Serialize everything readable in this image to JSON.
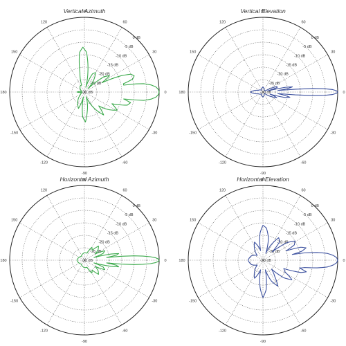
{
  "chart_data": [
    {
      "type": "polar",
      "title": "Vertical Azimuth",
      "color": "#3aa94a",
      "radial_ticks": [
        "0 dB",
        "-5 dB",
        "-10 dB",
        "-15 dB",
        "-20 dB",
        "-25 dB",
        "-30 dB"
      ],
      "radial_range_db": [
        -30,
        0
      ],
      "angular_ticks": [
        "90",
        "60",
        "30",
        "0",
        "-30",
        "-60",
        "-90",
        "-120",
        "-150",
        "180",
        "150",
        "120"
      ],
      "grid": true,
      "pattern": [
        {
          "angle": 0,
          "db": 0
        },
        {
          "angle": 2,
          "db": -0.3
        },
        {
          "angle": 4,
          "db": -1.2
        },
        {
          "angle": 6,
          "db": -3
        },
        {
          "angle": 8,
          "db": -6
        },
        {
          "angle": 9,
          "db": -9
        },
        {
          "angle": 10,
          "db": -14
        },
        {
          "angle": 12,
          "db": -14
        },
        {
          "angle": 15,
          "db": -10
        },
        {
          "angle": 18,
          "db": -9
        },
        {
          "angle": 21,
          "db": -10
        },
        {
          "angle": 24,
          "db": -14
        },
        {
          "angle": 28,
          "db": -22
        },
        {
          "angle": 33,
          "db": -18
        },
        {
          "angle": 38,
          "db": -20
        },
        {
          "angle": 44,
          "db": -28
        },
        {
          "angle": 52,
          "db": -24
        },
        {
          "angle": 60,
          "db": -21
        },
        {
          "angle": 66,
          "db": -22
        },
        {
          "angle": 74,
          "db": -28
        },
        {
          "angle": 80,
          "db": -22
        },
        {
          "angle": 87,
          "db": -14
        },
        {
          "angle": 92,
          "db": -12
        },
        {
          "angle": 97,
          "db": -14
        },
        {
          "angle": 103,
          "db": -22
        },
        {
          "angle": 112,
          "db": -27
        },
        {
          "angle": 125,
          "db": -27
        },
        {
          "angle": 145,
          "db": -28
        },
        {
          "angle": 168,
          "db": -29
        },
        {
          "angle": 180,
          "db": -27
        },
        {
          "angle": 190,
          "db": -29
        },
        {
          "angle": 215,
          "db": -28
        },
        {
          "angle": 238,
          "db": -25
        },
        {
          "angle": 250,
          "db": -23
        },
        {
          "angle": 258,
          "db": -28
        },
        {
          "angle": 266,
          "db": -20
        },
        {
          "angle": 272,
          "db": -18
        },
        {
          "angle": 278,
          "db": -22
        },
        {
          "angle": 290,
          "db": -28
        },
        {
          "angle": 302,
          "db": -22
        },
        {
          "angle": 310,
          "db": -18
        },
        {
          "angle": 316,
          "db": -22
        },
        {
          "angle": 324,
          "db": -18
        },
        {
          "angle": 331,
          "db": -15
        },
        {
          "angle": 337,
          "db": -18
        },
        {
          "angle": 343,
          "db": -12
        },
        {
          "angle": 347,
          "db": -11
        },
        {
          "angle": 350,
          "db": -14
        },
        {
          "angle": 352,
          "db": -6
        },
        {
          "angle": 354,
          "db": -3
        },
        {
          "angle": 356,
          "db": -1.2
        },
        {
          "angle": 358,
          "db": -0.3
        }
      ]
    },
    {
      "type": "polar",
      "title": "Vertical Elevation",
      "color": "#3a4f9e",
      "radial_ticks": [
        "0 dB",
        "-5 dB",
        "-10 dB",
        "-15 dB",
        "-20 dB",
        "-25 dB",
        "-30 dB"
      ],
      "radial_range_db": [
        -30,
        0
      ],
      "angular_ticks": [
        "90",
        "60",
        "30",
        "0",
        "-30",
        "-60",
        "-90",
        "-120",
        "-150",
        "180",
        "150",
        "120"
      ],
      "grid": true,
      "pattern": [
        {
          "angle": 0,
          "db": 0
        },
        {
          "angle": 1,
          "db": -0.5
        },
        {
          "angle": 2,
          "db": -2
        },
        {
          "angle": 3,
          "db": -5
        },
        {
          "angle": 4,
          "db": -10
        },
        {
          "angle": 5,
          "db": -17
        },
        {
          "angle": 6,
          "db": -24
        },
        {
          "angle": 8,
          "db": -20
        },
        {
          "angle": 10,
          "db": -18
        },
        {
          "angle": 12,
          "db": -21
        },
        {
          "angle": 14,
          "db": -28
        },
        {
          "angle": 18,
          "db": -24
        },
        {
          "angle": 22,
          "db": -24
        },
        {
          "angle": 28,
          "db": -29
        },
        {
          "angle": 40,
          "db": -29
        },
        {
          "angle": 60,
          "db": -29
        },
        {
          "angle": 90,
          "db": -28
        },
        {
          "angle": 130,
          "db": -29
        },
        {
          "angle": 160,
          "db": -28
        },
        {
          "angle": 180,
          "db": -25
        },
        {
          "angle": 200,
          "db": -28
        },
        {
          "angle": 230,
          "db": -29
        },
        {
          "angle": 270,
          "db": -28
        },
        {
          "angle": 300,
          "db": -29
        },
        {
          "angle": 320,
          "db": -29
        },
        {
          "angle": 332,
          "db": -26
        },
        {
          "angle": 338,
          "db": -24
        },
        {
          "angle": 343,
          "db": -27
        },
        {
          "angle": 346,
          "db": -21
        },
        {
          "angle": 349,
          "db": -19
        },
        {
          "angle": 352,
          "db": -22
        },
        {
          "angle": 354,
          "db": -24
        },
        {
          "angle": 355,
          "db": -17
        },
        {
          "angle": 356,
          "db": -10
        },
        {
          "angle": 357,
          "db": -5
        },
        {
          "angle": 358,
          "db": -2
        },
        {
          "angle": 359,
          "db": -0.5
        }
      ]
    },
    {
      "type": "polar",
      "title": "Horizontal Azimuth",
      "color": "#3aa94a",
      "radial_ticks": [
        "0 dB",
        "-5 dB",
        "-10 dB",
        "-15 dB",
        "-20 dB",
        "-25 dB",
        "-30 dB"
      ],
      "radial_range_db": [
        -30,
        0
      ],
      "angular_ticks": [
        "90",
        "60",
        "30",
        "0",
        "-30",
        "-60",
        "-90",
        "-120",
        "-150",
        "180",
        "150",
        "120"
      ],
      "grid": true,
      "pattern": [
        {
          "angle": 0,
          "db": 0
        },
        {
          "angle": 1,
          "db": -0.4
        },
        {
          "angle": 2,
          "db": -1.5
        },
        {
          "angle": 3,
          "db": -3.5
        },
        {
          "angle": 4,
          "db": -6.5
        },
        {
          "angle": 5,
          "db": -10
        },
        {
          "angle": 6,
          "db": -15
        },
        {
          "angle": 7,
          "db": -21
        },
        {
          "angle": 9,
          "db": -17
        },
        {
          "angle": 11,
          "db": -16
        },
        {
          "angle": 13,
          "db": -19
        },
        {
          "angle": 16,
          "db": -26
        },
        {
          "angle": 20,
          "db": -22
        },
        {
          "angle": 25,
          "db": -21
        },
        {
          "angle": 30,
          "db": -25
        },
        {
          "angle": 38,
          "db": -23
        },
        {
          "angle": 45,
          "db": -22
        },
        {
          "angle": 52,
          "db": -25
        },
        {
          "angle": 60,
          "db": -24
        },
        {
          "angle": 70,
          "db": -27
        },
        {
          "angle": 90,
          "db": -27
        },
        {
          "angle": 130,
          "db": -28
        },
        {
          "angle": 180,
          "db": -27
        },
        {
          "angle": 230,
          "db": -28
        },
        {
          "angle": 270,
          "db": -27
        },
        {
          "angle": 290,
          "db": -27
        },
        {
          "angle": 300,
          "db": -24
        },
        {
          "angle": 308,
          "db": -25
        },
        {
          "angle": 315,
          "db": -22
        },
        {
          "angle": 322,
          "db": -23
        },
        {
          "angle": 330,
          "db": -25
        },
        {
          "angle": 335,
          "db": -21
        },
        {
          "angle": 340,
          "db": -22
        },
        {
          "angle": 344,
          "db": -26
        },
        {
          "angle": 347,
          "db": -19
        },
        {
          "angle": 349,
          "db": -16
        },
        {
          "angle": 351,
          "db": -17
        },
        {
          "angle": 353,
          "db": -21
        },
        {
          "angle": 354,
          "db": -15
        },
        {
          "angle": 355,
          "db": -10
        },
        {
          "angle": 356,
          "db": -6.5
        },
        {
          "angle": 357,
          "db": -3.5
        },
        {
          "angle": 358,
          "db": -1.5
        },
        {
          "angle": 359,
          "db": -0.4
        }
      ]
    },
    {
      "type": "polar",
      "title": "Horizontal Elevation",
      "color": "#3a4f9e",
      "radial_ticks": [
        "0 dB",
        "-5 dB",
        "-10 dB",
        "-15 dB",
        "-20 dB",
        "-25 dB",
        "-30 dB"
      ],
      "radial_range_db": [
        -30,
        0
      ],
      "angular_ticks": [
        "90",
        "60",
        "30",
        "0",
        "-30",
        "-60",
        "-90",
        "-120",
        "-150",
        "180",
        "150",
        "120"
      ],
      "grid": true,
      "pattern": [
        {
          "angle": 0,
          "db": 0
        },
        {
          "angle": 2,
          "db": -0.4
        },
        {
          "angle": 4,
          "db": -1.8
        },
        {
          "angle": 6,
          "db": -4
        },
        {
          "angle": 8,
          "db": -8
        },
        {
          "angle": 10,
          "db": -13
        },
        {
          "angle": 11,
          "db": -18
        },
        {
          "angle": 13,
          "db": -14
        },
        {
          "angle": 16,
          "db": -12
        },
        {
          "angle": 19,
          "db": -14
        },
        {
          "angle": 22,
          "db": -20
        },
        {
          "angle": 26,
          "db": -16
        },
        {
          "angle": 31,
          "db": -15
        },
        {
          "angle": 36,
          "db": -18
        },
        {
          "angle": 42,
          "db": -25
        },
        {
          "angle": 48,
          "db": -20
        },
        {
          "angle": 55,
          "db": -19
        },
        {
          "angle": 62,
          "db": -23
        },
        {
          "angle": 68,
          "db": -27
        },
        {
          "angle": 76,
          "db": -21
        },
        {
          "angle": 84,
          "db": -17
        },
        {
          "angle": 90,
          "db": -16
        },
        {
          "angle": 96,
          "db": -19
        },
        {
          "angle": 104,
          "db": -26
        },
        {
          "angle": 115,
          "db": -22
        },
        {
          "angle": 125,
          "db": -24
        },
        {
          "angle": 140,
          "db": -27
        },
        {
          "angle": 160,
          "db": -25
        },
        {
          "angle": 180,
          "db": -24
        },
        {
          "angle": 200,
          "db": -25
        },
        {
          "angle": 220,
          "db": -27
        },
        {
          "angle": 235,
          "db": -24
        },
        {
          "angle": 245,
          "db": -22
        },
        {
          "angle": 256,
          "db": -26
        },
        {
          "angle": 264,
          "db": -19
        },
        {
          "angle": 270,
          "db": -15
        },
        {
          "angle": 276,
          "db": -18
        },
        {
          "angle": 284,
          "db": -26
        },
        {
          "angle": 292,
          "db": -21
        },
        {
          "angle": 300,
          "db": -18
        },
        {
          "angle": 306,
          "db": -22
        },
        {
          "angle": 314,
          "db": -25
        },
        {
          "angle": 320,
          "db": -19
        },
        {
          "angle": 326,
          "db": -16
        },
        {
          "angle": 332,
          "db": -20
        },
        {
          "angle": 338,
          "db": -21
        },
        {
          "angle": 342,
          "db": -14
        },
        {
          "angle": 345,
          "db": -12
        },
        {
          "angle": 348,
          "db": -15
        },
        {
          "angle": 350,
          "db": -13
        },
        {
          "angle": 352,
          "db": -8
        },
        {
          "angle": 354,
          "db": -4
        },
        {
          "angle": 356,
          "db": -1.8
        },
        {
          "angle": 358,
          "db": -0.4
        }
      ]
    }
  ]
}
